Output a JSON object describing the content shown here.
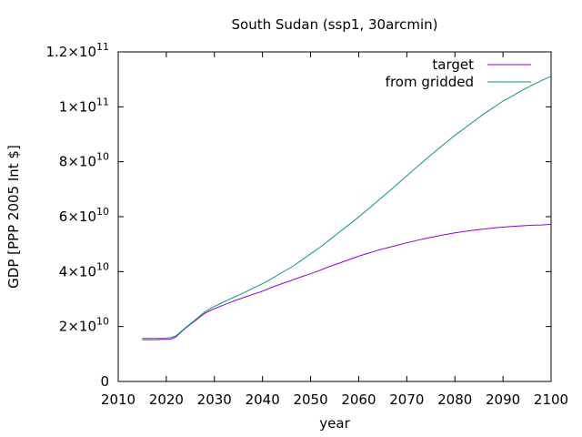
{
  "chart_data": {
    "type": "line",
    "title": "South Sudan (ssp1, 30arcmin)",
    "xlabel": "year",
    "ylabel": "GDP [PPP 2005 Int $]",
    "xlim": [
      2010,
      2100
    ],
    "ylim": [
      0,
      120000000000
    ],
    "grid": false,
    "legend_position": "top-right",
    "x_ticks": [
      2010,
      2020,
      2030,
      2040,
      2050,
      2060,
      2070,
      2080,
      2090,
      2100
    ],
    "x_tick_labels": [
      "2010",
      "2020",
      "2030",
      "2040",
      "2050",
      "2060",
      "2070",
      "2080",
      "2090",
      "2100"
    ],
    "y_ticks": [
      0,
      20000000000,
      40000000000,
      60000000000,
      80000000000,
      100000000000,
      120000000000
    ],
    "y_tick_labels": [
      {
        "mantissa": "0",
        "exp": ""
      },
      {
        "mantissa": "2×10",
        "exp": "10"
      },
      {
        "mantissa": "4×10",
        "exp": "10"
      },
      {
        "mantissa": "6×10",
        "exp": "10"
      },
      {
        "mantissa": "8×10",
        "exp": "10"
      },
      {
        "mantissa": "1×10",
        "exp": "11"
      },
      {
        "mantissa": "1.2×10",
        "exp": "11"
      }
    ],
    "x": [
      2015,
      2016,
      2017,
      2018,
      2019,
      2020,
      2021,
      2022,
      2023,
      2024,
      2025,
      2026,
      2027,
      2028,
      2029,
      2030,
      2032,
      2034,
      2036,
      2038,
      2040,
      2042,
      2044,
      2046,
      2048,
      2050,
      2052,
      2054,
      2056,
      2058,
      2060,
      2062,
      2064,
      2066,
      2068,
      2070,
      2072,
      2074,
      2076,
      2078,
      2080,
      2082,
      2084,
      2086,
      2088,
      2090,
      2092,
      2094,
      2096,
      2098,
      2100
    ],
    "series": [
      {
        "name": "target",
        "color": "#9400d3",
        "values": [
          15.2,
          15.2,
          15.2,
          15.2,
          15.3,
          15.3,
          15.5,
          16.2,
          17.9,
          19.4,
          20.8,
          22.1,
          23.5,
          24.8,
          25.7,
          26.5,
          27.9,
          29.3,
          30.5,
          31.7,
          32.9,
          34.3,
          35.6,
          36.8,
          38.1,
          39.2,
          40.5,
          41.9,
          43.1,
          44.4,
          45.6,
          46.7,
          47.8,
          48.7,
          49.6,
          50.5,
          51.3,
          52.1,
          52.8,
          53.5,
          54.1,
          54.6,
          55.1,
          55.5,
          55.9,
          56.2,
          56.5,
          56.7,
          56.9,
          57.0,
          57.2
        ]
      },
      {
        "name": "from gridded",
        "color": "#009e73",
        "values": [
          15.7,
          15.7,
          15.7,
          15.7,
          15.7,
          15.8,
          16.0,
          16.6,
          18.1,
          19.6,
          21.0,
          22.4,
          23.9,
          25.3,
          26.4,
          27.3,
          29.0,
          30.6,
          32.2,
          33.9,
          35.6,
          37.5,
          39.6,
          41.6,
          44.0,
          46.5,
          48.9,
          51.6,
          54.4,
          57.1,
          59.9,
          62.8,
          65.8,
          68.8,
          71.8,
          74.9,
          77.9,
          81.0,
          83.9,
          86.8,
          89.6,
          92.2,
          94.8,
          97.4,
          99.7,
          102.1,
          104.0,
          106.1,
          107.8,
          109.6,
          111.1
        ]
      }
    ],
    "value_scale_note_units": "values in billions (×10^9)"
  }
}
